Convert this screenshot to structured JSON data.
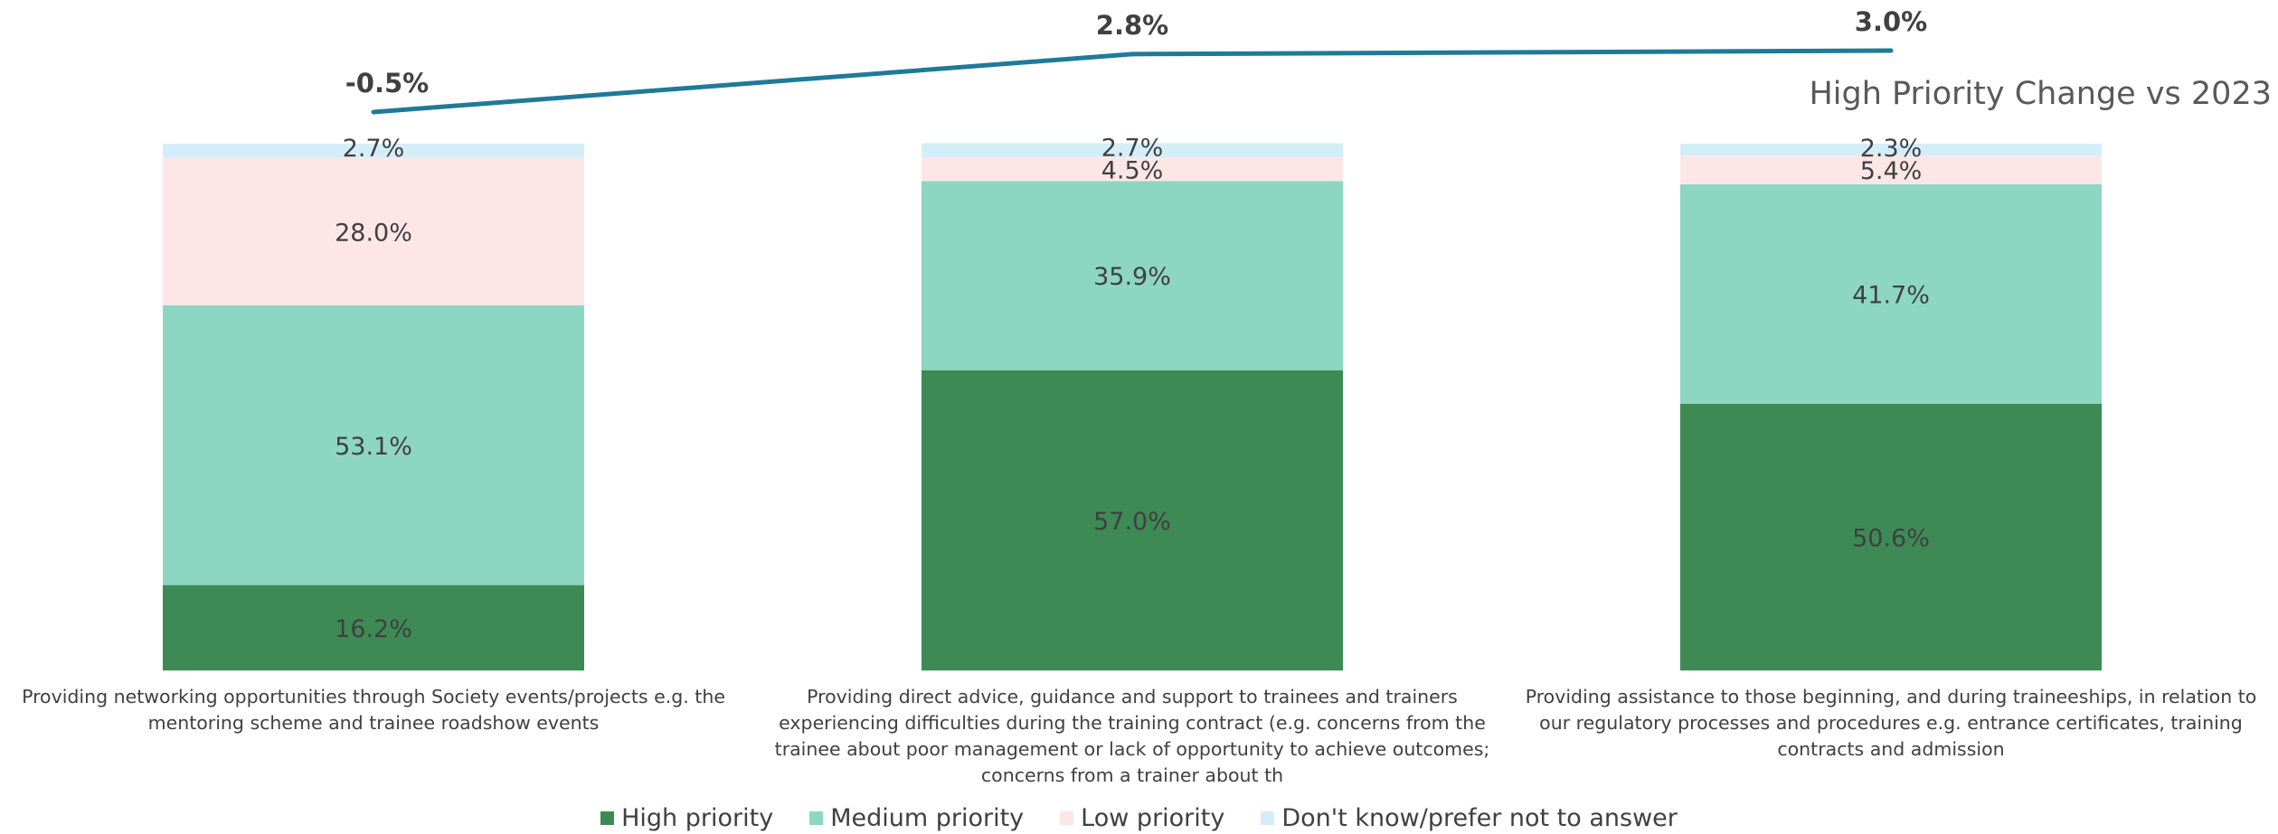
{
  "chart_data": {
    "type": "bar",
    "stacked": true,
    "categories": [
      "Providing networking opportunities through Society events/projects e.g. the mentoring scheme and trainee roadshow events",
      "Providing direct advice, guidance and support to trainees and trainers experiencing difficulties during the training contract (e.g. concerns from the trainee about poor management or lack of opportunity to achieve outcomes; concerns from a trainer about th",
      "Providing assistance to those beginning, and during traineeships, in relation to our regulatory processes and procedures e.g. entrance certificates, training contracts and admission"
    ],
    "series": [
      {
        "name": "High priority",
        "color": "#3e8a55",
        "values": [
          16.2,
          57.0,
          50.6
        ],
        "labels": [
          "16.2%",
          "57.0%",
          "50.6%"
        ]
      },
      {
        "name": "Medium priority",
        "color": "#8dd6c2",
        "values": [
          53.1,
          35.9,
          41.7
        ],
        "labels": [
          "53.1%",
          "35.9%",
          "41.7%"
        ]
      },
      {
        "name": "Low priority",
        "color": "#fde6e6",
        "values": [
          28.0,
          4.5,
          5.4
        ],
        "labels": [
          "28.0%",
          "4.5%",
          "5.4%"
        ]
      },
      {
        "name": "Don't know/prefer not to answer",
        "color": "#d4eef9",
        "values": [
          2.7,
          2.7,
          2.3
        ],
        "labels": [
          "2.7%",
          "2.7%",
          "2.3%"
        ]
      }
    ],
    "ylim": [
      0,
      100
    ],
    "line": {
      "name": "High Priority Change vs 2023",
      "color": "#1f7a99",
      "values": [
        -0.5,
        2.8,
        3.0
      ],
      "labels": [
        "-0.5%",
        "2.8%",
        "3.0%"
      ]
    },
    "grid": false,
    "legend": "bottom"
  }
}
